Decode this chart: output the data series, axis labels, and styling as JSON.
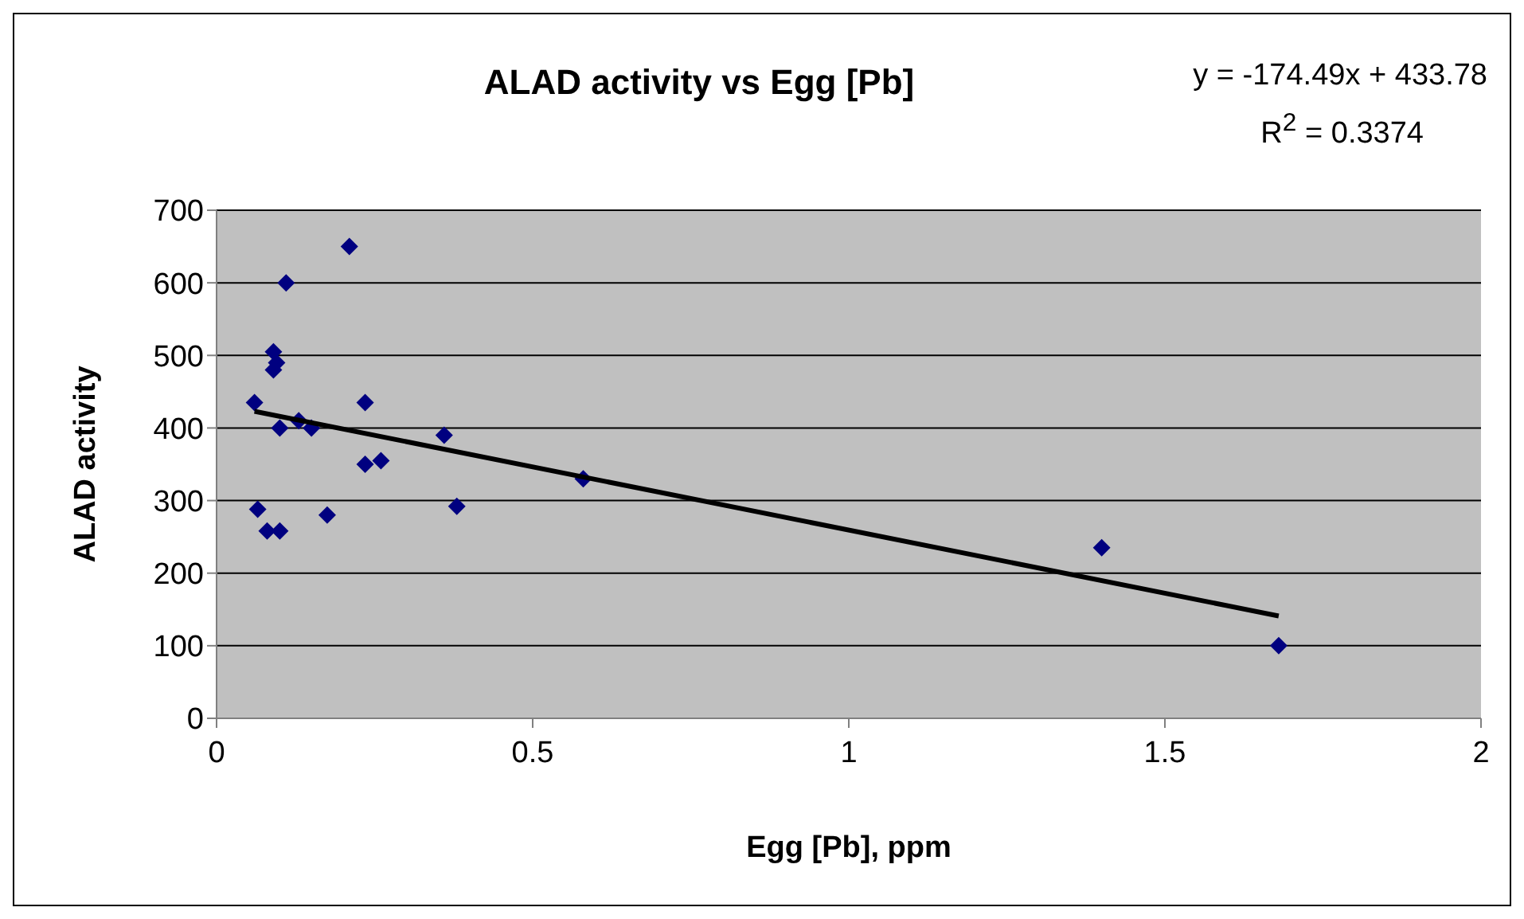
{
  "chart_data": {
    "type": "scatter",
    "title": "ALAD activity vs Egg [Pb]",
    "xlabel": "Egg [Pb], ppm",
    "ylabel": "ALAD activity",
    "annotations": [
      "y = -174.49x + 433.78",
      "R$^{2}$ = 0.3374"
    ],
    "xlim": [
      0,
      2
    ],
    "xticks": [
      0,
      0.5,
      1,
      1.5,
      2
    ],
    "ylim": [
      0,
      700
    ],
    "yticks": [
      0,
      100,
      200,
      300,
      400,
      500,
      600,
      700
    ],
    "grid": "y",
    "marker": "diamond",
    "series": [
      {
        "color": "#000080",
        "x": [
          0.06,
          0.21,
          0.11,
          0.09,
          0.095,
          0.09,
          0.1,
          0.13,
          0.15,
          0.235,
          0.235,
          0.26,
          0.36,
          0.38,
          0.58,
          0.065,
          0.08,
          0.1,
          0.175,
          1.4,
          1.68
        ],
        "values": [
          435,
          650,
          600,
          505,
          490,
          480,
          400,
          410,
          400,
          435,
          350,
          355,
          390,
          292,
          330,
          288,
          258,
          258,
          280,
          235,
          100
        ]
      },
      {
        "type": "line",
        "color": "#000000",
        "marker": "none",
        "x": [
          0.06,
          1.68
        ],
        "values": [
          423,
          141
        ]
      }
    ]
  }
}
